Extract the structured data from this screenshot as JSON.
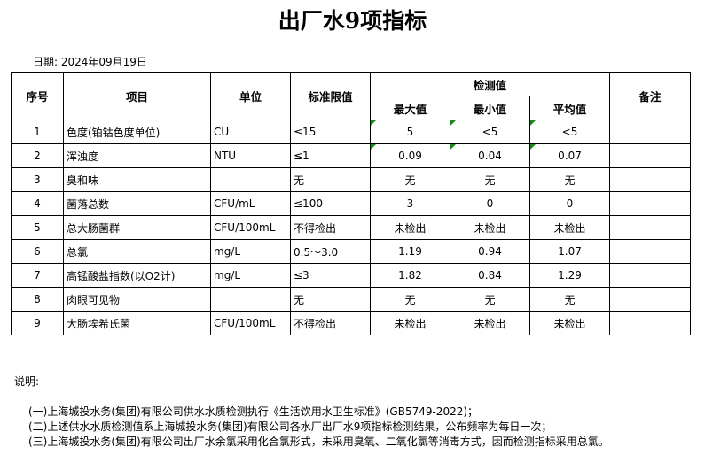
{
  "title": "出厂水9项指标",
  "date": "日期: 2024年09月19日",
  "headers": {
    "no": "序号",
    "item": "项目",
    "unit": "单位",
    "limit": "标准限值",
    "detect": "检测值",
    "max": "最大值",
    "min": "最小值",
    "avg": "平均值",
    "remark": "备注"
  },
  "rows": [
    {
      "no": "1",
      "item": "色度(铂钴色度单位)",
      "unit": "CU",
      "limit": "≤15",
      "max": "5",
      "min": "<5",
      "avg": "<5",
      "remark": ""
    },
    {
      "no": "2",
      "item": "浑浊度",
      "unit": "NTU",
      "limit": "≤1",
      "max": "0.09",
      "min": "0.04",
      "avg": "0.07",
      "remark": ""
    },
    {
      "no": "3",
      "item": "臭和味",
      "unit": "",
      "limit": "无",
      "max": "无",
      "min": "无",
      "avg": "无",
      "remark": ""
    },
    {
      "no": "4",
      "item": "菌落总数",
      "unit": "CFU/mL",
      "limit": "≤100",
      "max": "3",
      "min": "0",
      "avg": "0",
      "remark": ""
    },
    {
      "no": "5",
      "item": "总大肠菌群",
      "unit": "CFU/100mL",
      "limit": "不得检出",
      "max": "未检出",
      "min": "未检出",
      "avg": "未检出",
      "remark": ""
    },
    {
      "no": "6",
      "item": "总氯",
      "unit": "mg/L",
      "limit": "0.5～3.0",
      "max": "1.19",
      "min": "0.94",
      "avg": "1.07",
      "remark": ""
    },
    {
      "no": "7",
      "item": "高锰酸盐指数(以O2计)",
      "unit": "mg/L",
      "limit": "≤3",
      "max": "1.82",
      "min": "0.84",
      "avg": "1.29",
      "remark": ""
    },
    {
      "no": "8",
      "item": "肉眼可见物",
      "unit": "",
      "limit": "无",
      "max": "无",
      "min": "无",
      "avg": "无",
      "remark": ""
    },
    {
      "no": "9",
      "item": "大肠埃希氏菌",
      "unit": "CFU/100mL",
      "limit": "不得检出",
      "max": "未检出",
      "min": "未检出",
      "avg": "未检出",
      "remark": ""
    }
  ],
  "notes": {
    "heading": "说明:",
    "items": [
      "(一)上海城投水务(集团)有限公司供水水质检测执行《生活饮用水卫生标准》(GB5749-2022)；",
      "(二)上述供水水质检测值系上海城投水务(集团)有限公司各水厂出厂水9项指标检测结果，公布频率为每日一次；",
      "(三)上海城投水务(集团)有限公司出厂水余氯采用化合氯形式，未采用臭氧、二氧化氯等消毒方式，因而检测指标采用总氯。"
    ]
  },
  "colors": {
    "indicator": "#1a8a1a"
  }
}
